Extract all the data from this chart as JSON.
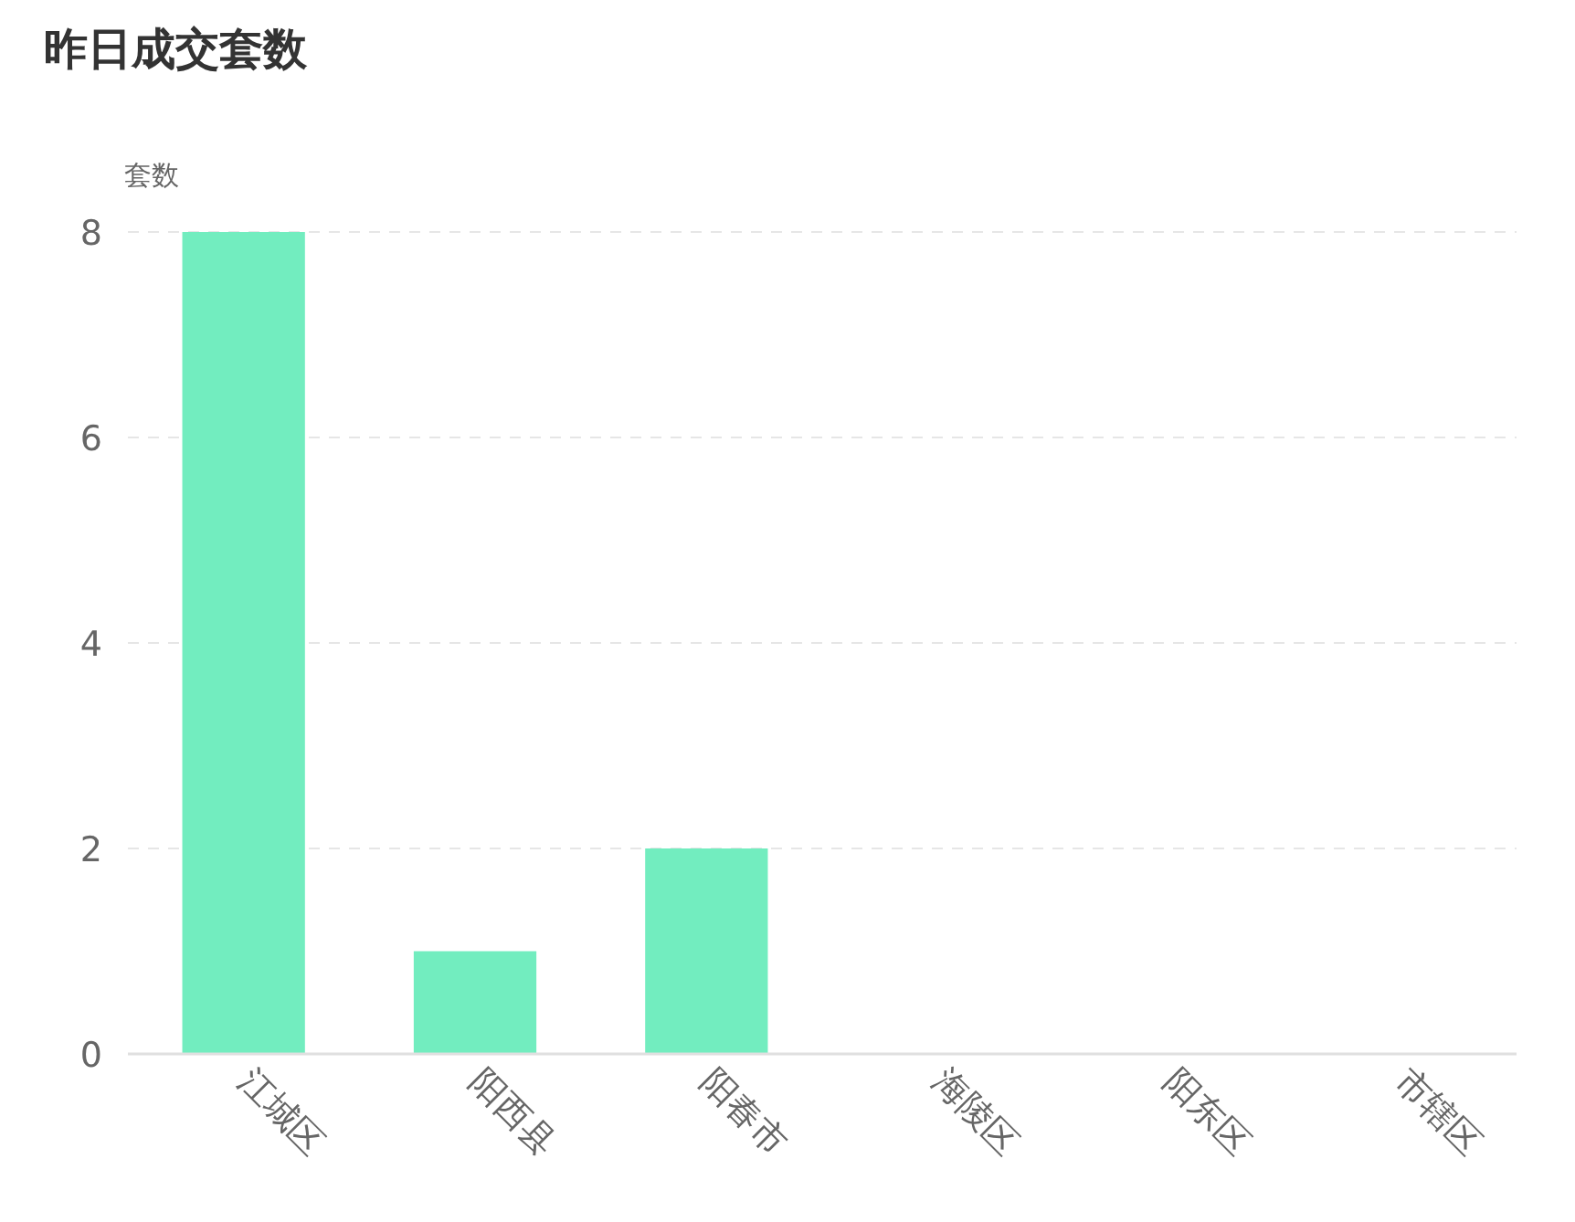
{
  "chart_data": {
    "type": "bar",
    "title": "昨日成交套数",
    "ylabel": "套数",
    "categories": [
      "江城区",
      "阳西县",
      "阳春市",
      "海陵区",
      "阳东区",
      "市辖区"
    ],
    "values": [
      8,
      1,
      2,
      0,
      0,
      0
    ],
    "color": "#72edbf",
    "ylim": [
      0,
      8
    ],
    "yticks": [
      0,
      2,
      4,
      6,
      8
    ],
    "grid": "y"
  }
}
